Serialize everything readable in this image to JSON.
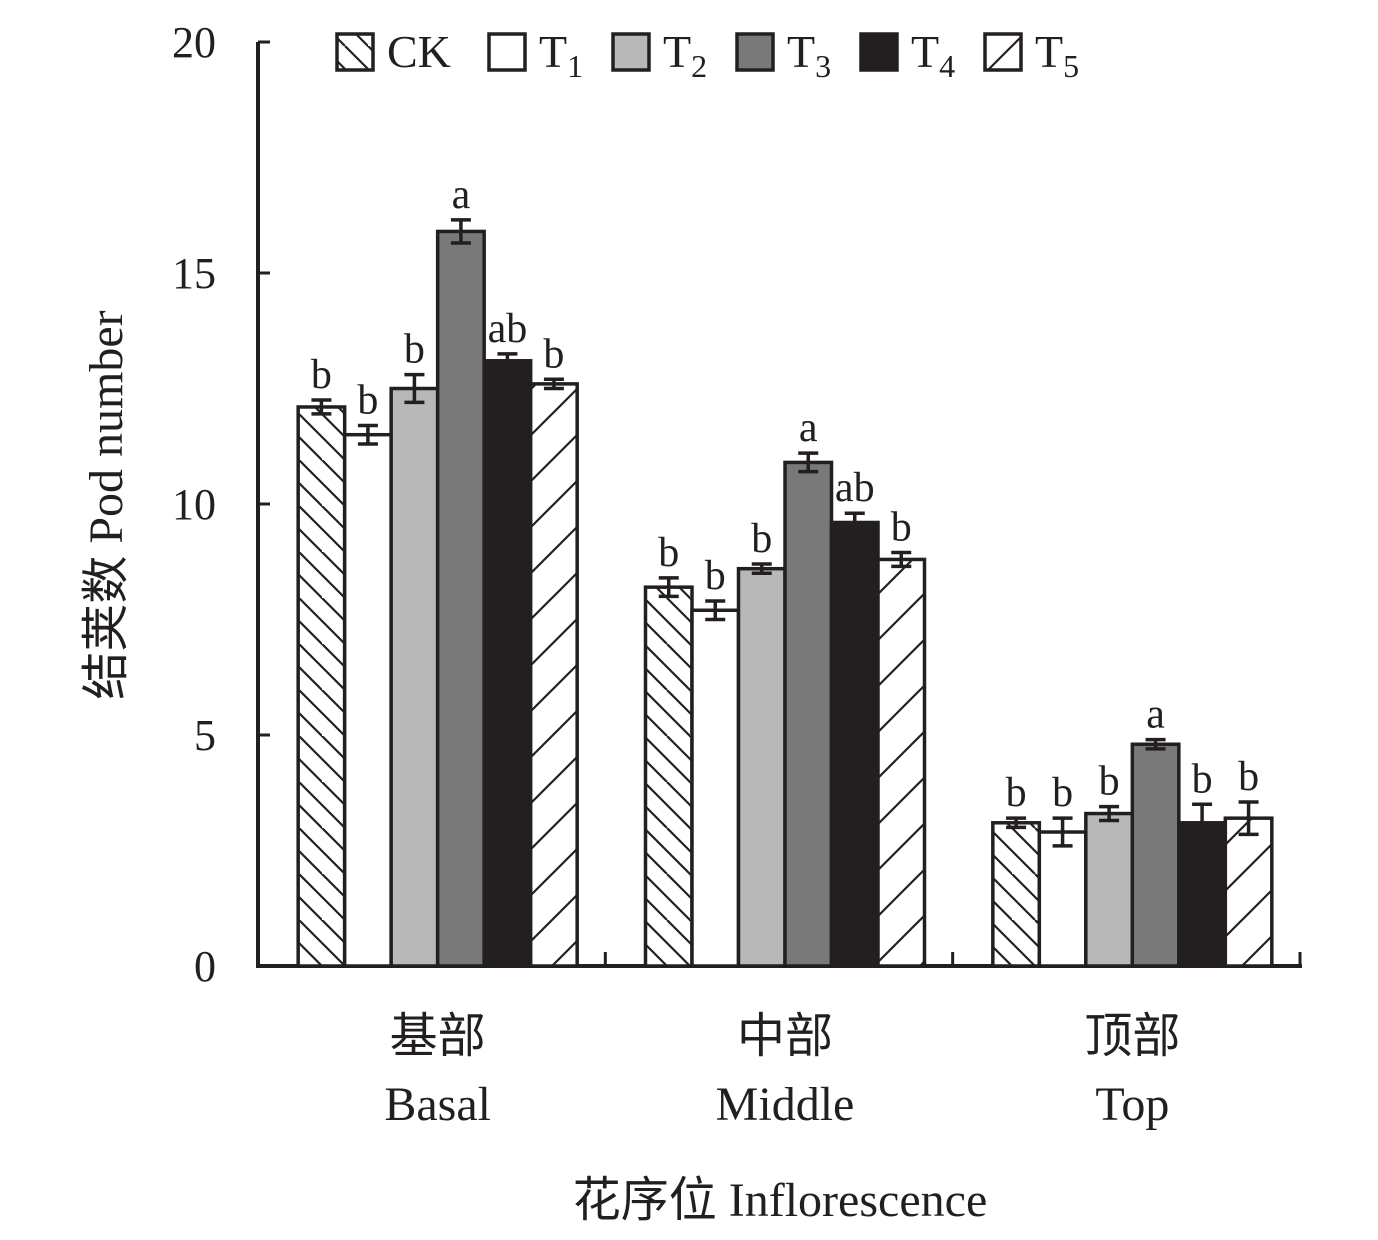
{
  "chart_data": {
    "type": "bar",
    "ylabel": "结荚数 Pod number",
    "xlabel": "花序位 Inflorescence",
    "ylim": [
      0,
      20
    ],
    "yticks": [
      "0",
      "5",
      "10",
      "15",
      "20"
    ],
    "categories": [
      {
        "zh": "基部",
        "en": "Basal"
      },
      {
        "zh": "中部",
        "en": "Middle"
      },
      {
        "zh": "顶部",
        "en": "Top"
      }
    ],
    "legend_position": "top",
    "series": [
      {
        "name": "CK",
        "sub": "",
        "fill": "hatch-back",
        "values": [
          12.1,
          8.2,
          3.1
        ],
        "errors": [
          0.15,
          0.2,
          0.1
        ],
        "labels": [
          "b",
          "b",
          "b"
        ]
      },
      {
        "name": "T",
        "sub": "1",
        "fill": "#ffffff",
        "values": [
          11.5,
          7.7,
          2.9
        ],
        "errors": [
          0.2,
          0.2,
          0.3
        ],
        "labels": [
          "b",
          "b",
          "b"
        ]
      },
      {
        "name": "T",
        "sub": "2",
        "fill": "#b8b8b8",
        "values": [
          12.5,
          8.6,
          3.3
        ],
        "errors": [
          0.3,
          0.1,
          0.15
        ],
        "labels": [
          "b",
          "b",
          "b"
        ]
      },
      {
        "name": "T",
        "sub": "3",
        "fill": "#7a797a",
        "values": [
          15.9,
          10.9,
          4.8
        ],
        "errors": [
          0.25,
          0.2,
          0.1
        ],
        "labels": [
          "a",
          "a",
          "a"
        ]
      },
      {
        "name": "T",
        "sub": "4",
        "fill": "#231f20",
        "values": [
          13.1,
          9.6,
          3.1
        ],
        "errors": [
          0.15,
          0.2,
          0.4
        ],
        "labels": [
          "ab",
          "ab",
          "b"
        ]
      },
      {
        "name": "T",
        "sub": "5",
        "fill": "hatch-fwd",
        "values": [
          12.6,
          8.8,
          3.2
        ],
        "errors": [
          0.1,
          0.15,
          0.35
        ],
        "labels": [
          "b",
          "b",
          "b"
        ]
      }
    ]
  }
}
